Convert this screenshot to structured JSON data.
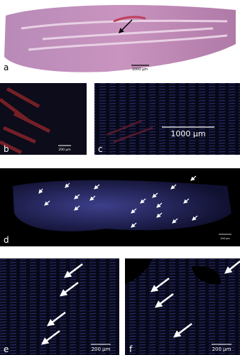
{
  "panels": [
    {
      "label": "a",
      "scale_bar": "1000 µm"
    },
    {
      "label": "b",
      "scale_bar": "200 µm"
    },
    {
      "label": "c",
      "scale_bar": "1000 µm"
    },
    {
      "label": "d",
      "scale_bar": "100 µm"
    },
    {
      "label": "e",
      "scale_bar": "200 µm"
    },
    {
      "label": "f",
      "scale_bar": "200 µm"
    }
  ]
}
